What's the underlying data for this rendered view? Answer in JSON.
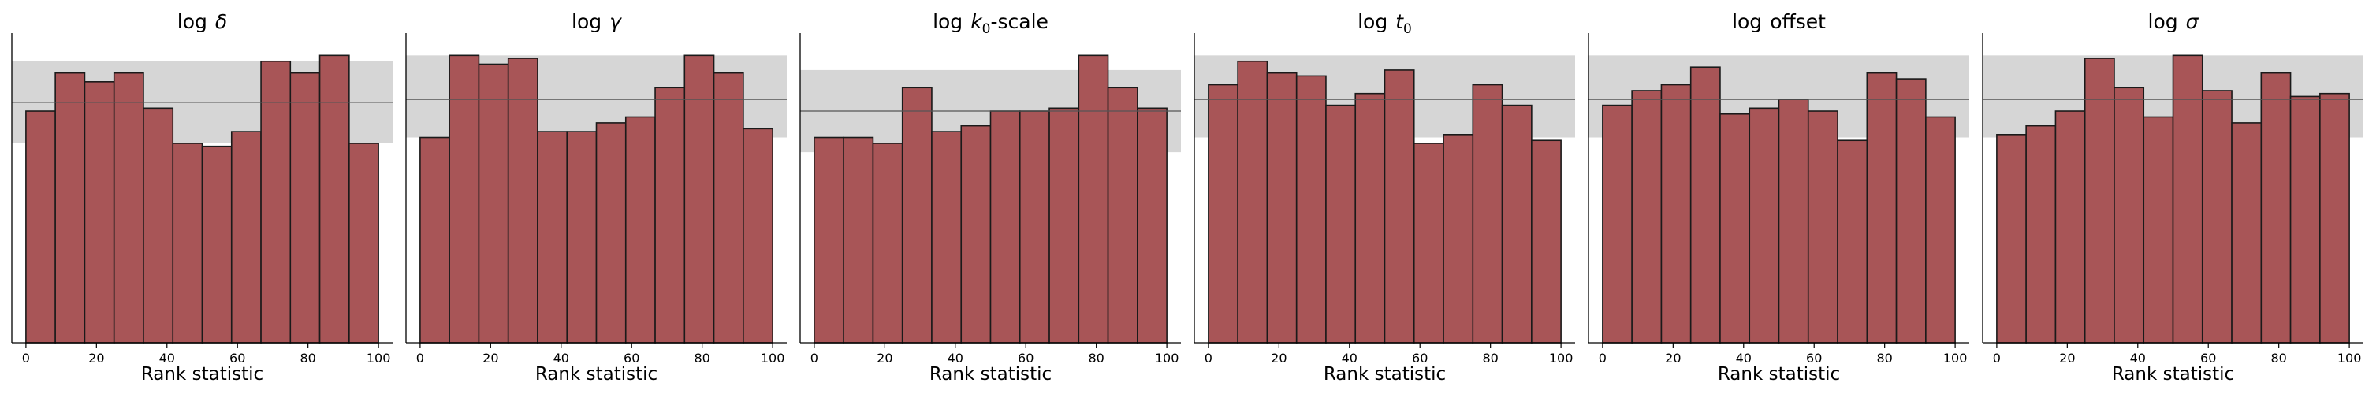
{
  "figure": {
    "bar_color": "#a85557",
    "band_color": "#d6d6d6",
    "edge_color": "#1a1a1a",
    "line_color": "#555555"
  },
  "chart_data": [
    {
      "type": "bar",
      "title_main": "log",
      "title_sym": "δ",
      "title_sub": "",
      "title_rest": "",
      "xlabel": "Rank statistic",
      "xticks": [
        "0",
        "20",
        "40",
        "60",
        "80",
        "100"
      ],
      "xlim": [
        -4,
        104
      ],
      "bin_edges": [
        0,
        8.33,
        16.67,
        25,
        33.33,
        41.67,
        50,
        58.33,
        66.67,
        75,
        83.33,
        91.67,
        100
      ],
      "values": [
        79,
        92,
        89,
        92,
        80,
        68,
        67,
        72,
        96,
        92,
        98,
        68
      ],
      "expected": 82,
      "band": [
        68,
        96
      ],
      "ylim": [
        0,
        104
      ]
    },
    {
      "type": "bar",
      "title_main": "log",
      "title_sym": "γ",
      "title_sub": "",
      "title_rest": "",
      "xlabel": "Rank statistic",
      "xticks": [
        "0",
        "20",
        "40",
        "60",
        "80",
        "100"
      ],
      "xlim": [
        -4,
        104
      ],
      "bin_edges": [
        0,
        8.33,
        16.67,
        25,
        33.33,
        41.67,
        50,
        58.33,
        66.67,
        75,
        83.33,
        91.67,
        100
      ],
      "values": [
        70,
        98,
        95,
        97,
        72,
        72,
        75,
        77,
        87,
        98,
        92,
        73
      ],
      "expected": 83,
      "band": [
        70,
        98
      ],
      "ylim": [
        0,
        104
      ]
    },
    {
      "type": "bar",
      "title_main": "log",
      "title_sym": "k",
      "title_sub": "0",
      "title_rest": "-scale",
      "xlabel": "Rank statistic",
      "xticks": [
        "0",
        "20",
        "40",
        "60",
        "80",
        "100"
      ],
      "xlim": [
        -4,
        104
      ],
      "bin_edges": [
        0,
        8.33,
        16.67,
        25,
        33.33,
        41.67,
        50,
        58.33,
        66.67,
        75,
        83.33,
        91.67,
        100
      ],
      "values": [
        70,
        70,
        68,
        87,
        72,
        74,
        79,
        79,
        80,
        98,
        87,
        80
      ],
      "expected": 79,
      "band": [
        65,
        93
      ],
      "ylim": [
        0,
        104
      ]
    },
    {
      "type": "bar",
      "title_main": "log",
      "title_sym": "t",
      "title_sub": "0",
      "title_rest": "",
      "xlabel": "Rank statistic",
      "xticks": [
        "0",
        "20",
        "40",
        "60",
        "80",
        "100"
      ],
      "xlim": [
        -4,
        104
      ],
      "bin_edges": [
        0,
        8.33,
        16.67,
        25,
        33.33,
        41.67,
        50,
        58.33,
        66.67,
        75,
        83.33,
        91.67,
        100
      ],
      "values": [
        88,
        96,
        92,
        91,
        81,
        85,
        93,
        68,
        71,
        88,
        81,
        69
      ],
      "expected": 83,
      "band": [
        70,
        98
      ],
      "ylim": [
        0,
        104
      ]
    },
    {
      "type": "bar",
      "title_main": "log",
      "title_sym": "",
      "title_sub": "",
      "title_rest": "offset",
      "xlabel": "Rank statistic",
      "xticks": [
        "0",
        "20",
        "40",
        "60",
        "80",
        "100"
      ],
      "xlim": [
        -4,
        104
      ],
      "bin_edges": [
        0,
        8.33,
        16.67,
        25,
        33.33,
        41.67,
        50,
        58.33,
        66.67,
        75,
        83.33,
        91.67,
        100
      ],
      "values": [
        81,
        86,
        88,
        94,
        78,
        80,
        83,
        79,
        69,
        92,
        90,
        77
      ],
      "expected": 83,
      "band": [
        70,
        98
      ],
      "ylim": [
        0,
        104
      ]
    },
    {
      "type": "bar",
      "title_main": "log",
      "title_sym": "σ",
      "title_sub": "",
      "title_rest": "",
      "xlabel": "Rank statistic",
      "xticks": [
        "0",
        "20",
        "40",
        "60",
        "80",
        "100"
      ],
      "xlim": [
        -4,
        104
      ],
      "bin_edges": [
        0,
        8.33,
        16.67,
        25,
        33.33,
        41.67,
        50,
        58.33,
        66.67,
        75,
        83.33,
        91.67,
        100
      ],
      "values": [
        71,
        74,
        79,
        97,
        87,
        77,
        98,
        86,
        75,
        92,
        84,
        85
      ],
      "expected": 83,
      "band": [
        70,
        98
      ],
      "ylim": [
        0,
        104
      ]
    }
  ]
}
